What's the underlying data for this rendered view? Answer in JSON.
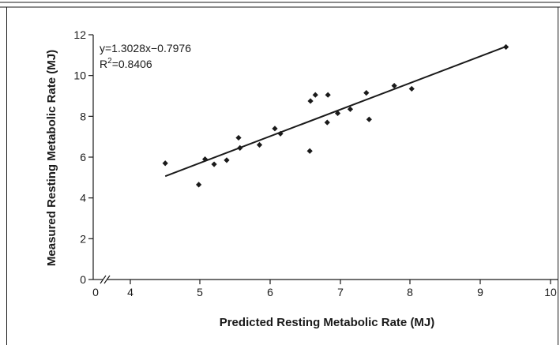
{
  "chart_data": {
    "type": "scatter",
    "xlabel": "Predicted Resting Metabolic Rate (MJ)",
    "ylabel": "Measured Resting Metabolic Rate (MJ)",
    "x_ticks": [
      "0",
      "4",
      "5",
      "6",
      "7",
      "8",
      "9",
      "10"
    ],
    "y_ticks": [
      "0",
      "2",
      "4",
      "6",
      "8",
      "10",
      "12"
    ],
    "xlim": [
      3.55,
      10
    ],
    "x_break": true,
    "ylim": [
      0,
      12
    ],
    "points": [
      {
        "x": 4.5,
        "y": 5.7
      },
      {
        "x": 4.98,
        "y": 4.65
      },
      {
        "x": 5.07,
        "y": 5.9
      },
      {
        "x": 5.2,
        "y": 5.65
      },
      {
        "x": 5.38,
        "y": 5.85
      },
      {
        "x": 5.55,
        "y": 6.95
      },
      {
        "x": 5.57,
        "y": 6.45
      },
      {
        "x": 5.85,
        "y": 6.6
      },
      {
        "x": 6.07,
        "y": 7.4
      },
      {
        "x": 6.15,
        "y": 7.15
      },
      {
        "x": 6.57,
        "y": 6.3
      },
      {
        "x": 6.58,
        "y": 8.75
      },
      {
        "x": 6.65,
        "y": 9.05
      },
      {
        "x": 6.82,
        "y": 7.7
      },
      {
        "x": 6.83,
        "y": 9.05
      },
      {
        "x": 6.97,
        "y": 8.15
      },
      {
        "x": 7.15,
        "y": 8.35
      },
      {
        "x": 7.38,
        "y": 9.15
      },
      {
        "x": 7.42,
        "y": 7.85
      },
      {
        "x": 7.78,
        "y": 9.5
      },
      {
        "x": 8.03,
        "y": 9.35
      },
      {
        "x": 9.38,
        "y": 11.4
      }
    ],
    "fit_line": {
      "slope": 1.3028,
      "intercept": -0.7976,
      "x_start": 4.5,
      "x_end": 9.38
    },
    "annotations": {
      "equation": "y=1.3028x−0.7976",
      "r2_prefix": "R",
      "r2_sup": "2",
      "r2_value": "=0.8406"
    },
    "grid": false,
    "legend": "none"
  }
}
